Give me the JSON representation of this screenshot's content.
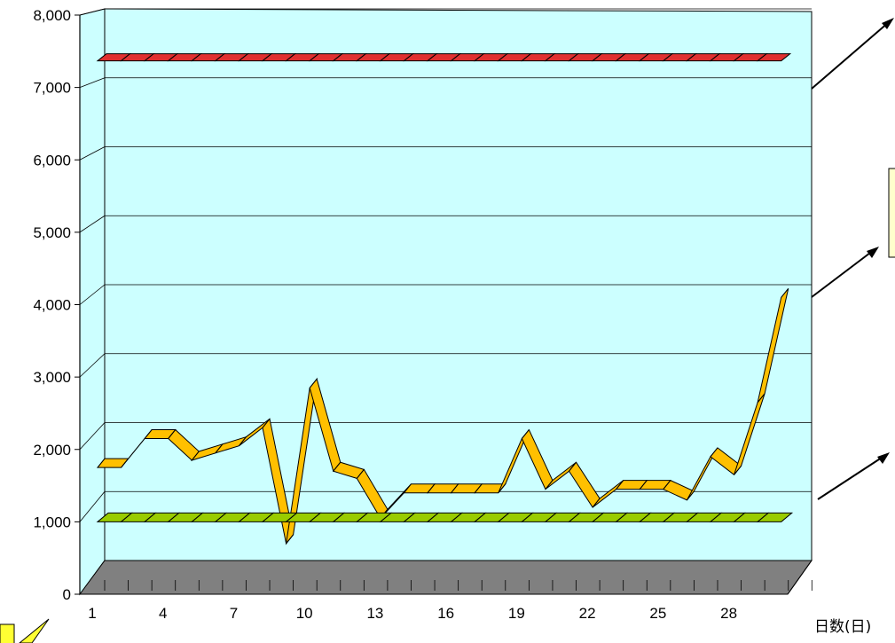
{
  "chart_data": {
    "type": "line",
    "xlabel": "日数(日)",
    "ylim": [
      0,
      8000
    ],
    "y_ticks": [
      "0",
      "1,000",
      "2,000",
      "3,000",
      "4,000",
      "5,000",
      "6,000",
      "7,000",
      "8,000"
    ],
    "x_ticks": [
      "1",
      "4",
      "7",
      "10",
      "13",
      "16",
      "19",
      "22",
      "25",
      "28"
    ],
    "grid": true,
    "three_d": true,
    "colors": {
      "upper_line": "#e03030",
      "middle_line": "#ffc000",
      "lower_line": "#99cc00",
      "back_wall": "#ccffff",
      "floor": "#808080"
    },
    "x": [
      1,
      2,
      3,
      4,
      5,
      6,
      7,
      8,
      9,
      10,
      11,
      12,
      13,
      14,
      15,
      16,
      17,
      18,
      19,
      20,
      21,
      22,
      23,
      24,
      25,
      26,
      27,
      28,
      29,
      30
    ],
    "series": [
      {
        "values": [
          7000,
          7000,
          7000,
          7000,
          7000,
          7000,
          7000,
          7000,
          7000,
          7000,
          7000,
          7000,
          7000,
          7000,
          7000,
          7000,
          7000,
          7000,
          7000,
          7000,
          7000,
          7000,
          7000,
          7000,
          7000,
          7000,
          7000,
          7000,
          7000,
          7000
        ]
      },
      {
        "values": [
          1750,
          1750,
          2150,
          2150,
          1850,
          1950,
          2050,
          2300,
          700,
          2850,
          1700,
          1600,
          1050,
          1400,
          1400,
          1400,
          1400,
          1400,
          2150,
          1450,
          1700,
          1200,
          1450,
          1450,
          1450,
          1300,
          1900,
          1650,
          2650,
          4100
        ]
      },
      {
        "values": [
          1000,
          1000,
          1000,
          1000,
          1000,
          1000,
          1000,
          1000,
          1000,
          1000,
          1000,
          1000,
          1000,
          1000,
          1000,
          1000,
          1000,
          1000,
          1000,
          1000,
          1000,
          1000,
          1000,
          1000,
          1000,
          1000,
          1000,
          1000,
          1000,
          1000
        ]
      }
    ]
  }
}
